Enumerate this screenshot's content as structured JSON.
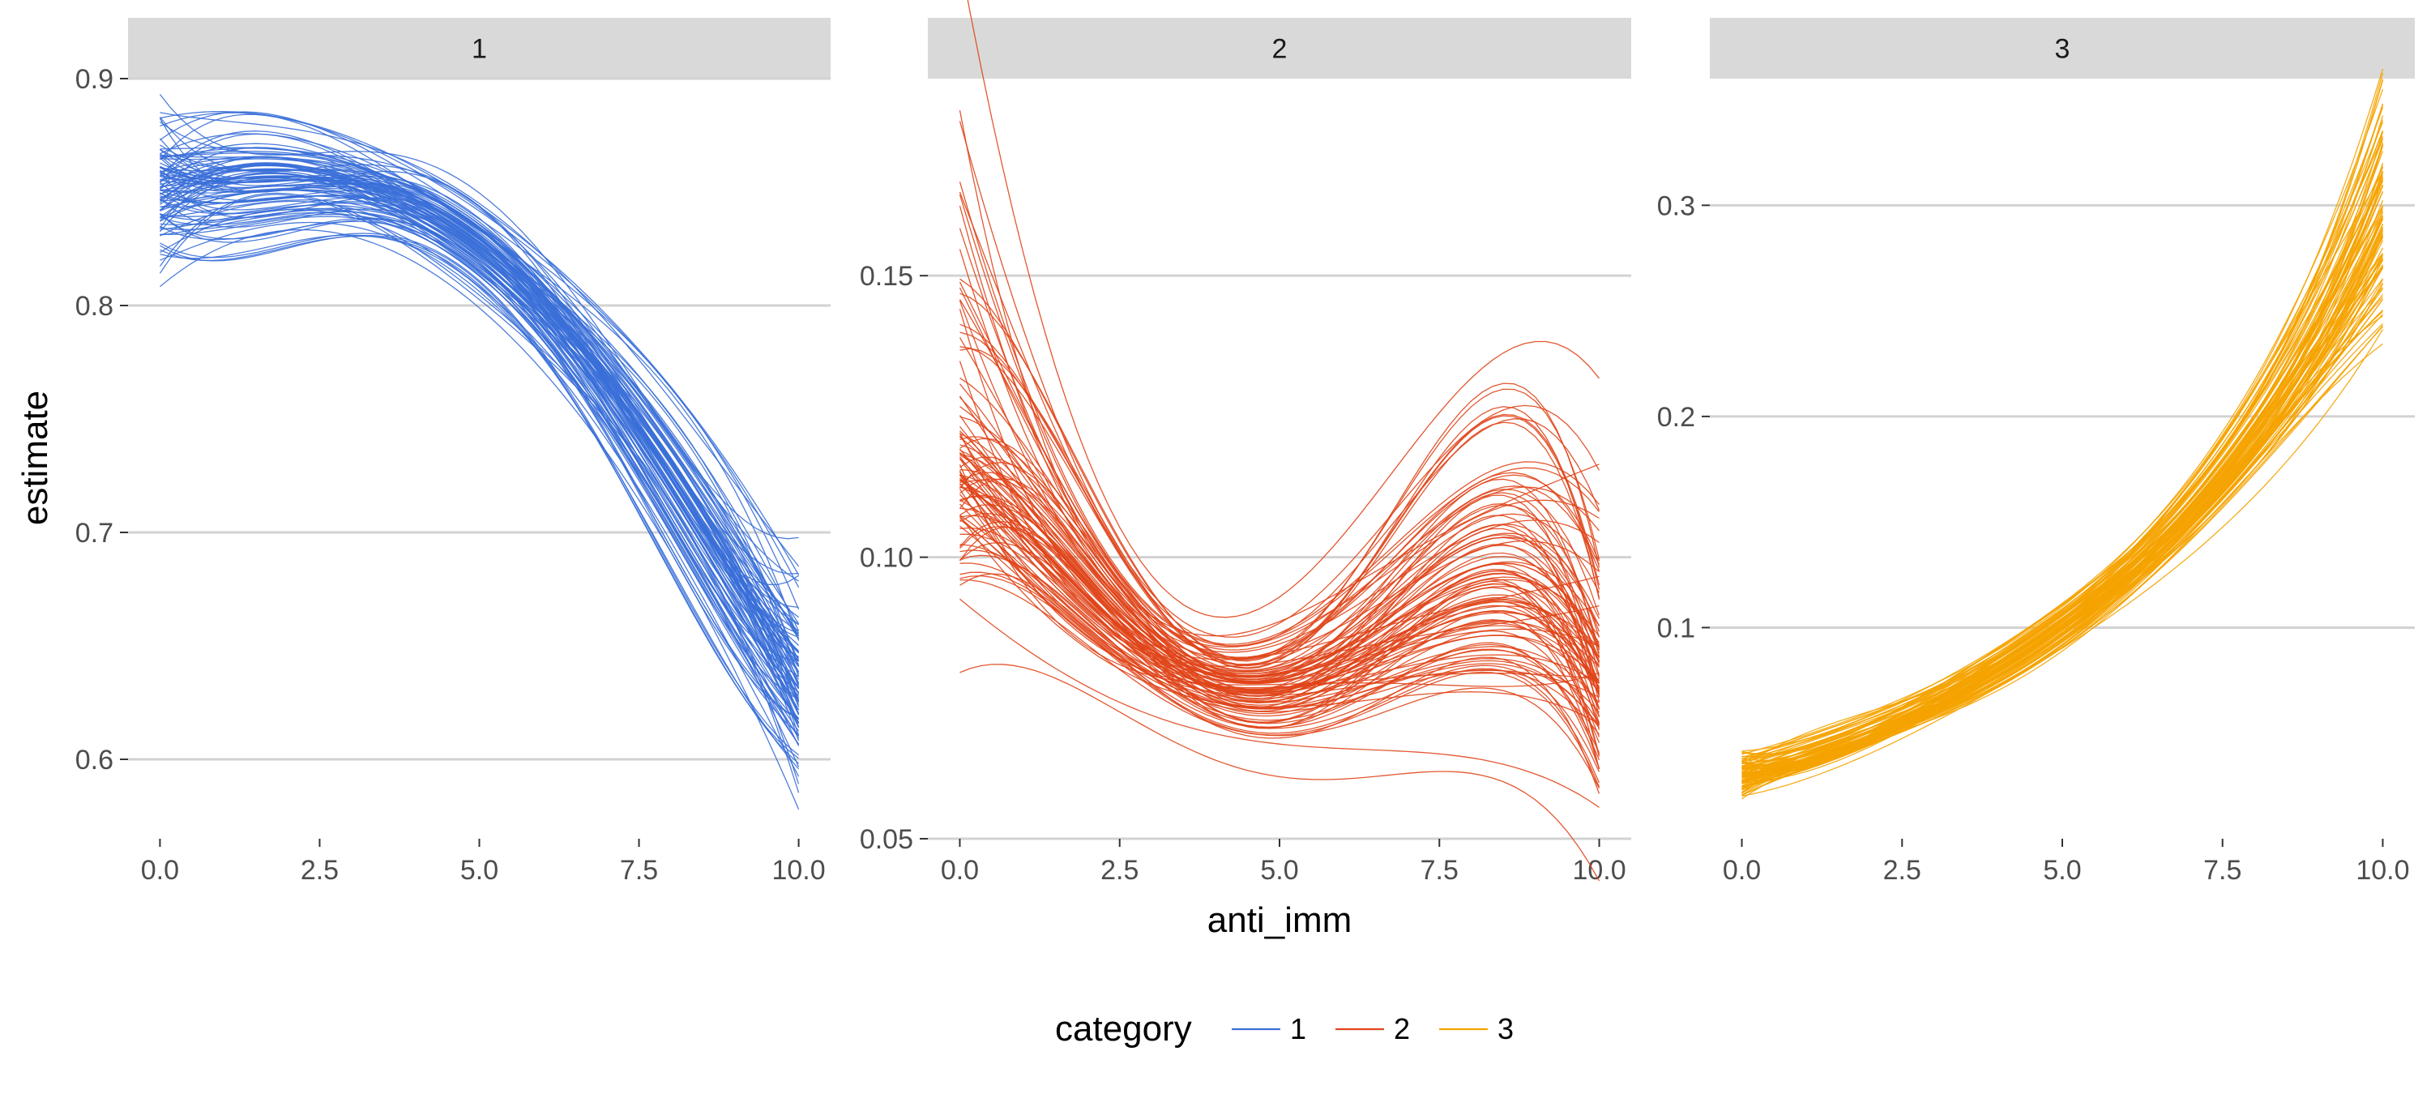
{
  "chart_data": {
    "type": "line",
    "facet_by": "category",
    "xlabel": "anti_imm",
    "ylabel": "estimate",
    "x_ticks": [
      0.0,
      2.5,
      5.0,
      7.5,
      10.0
    ],
    "x_tick_labels": [
      "0.0",
      "2.5",
      "5.0",
      "7.5",
      "10.0"
    ],
    "xlim": [
      -0.5,
      10.5
    ],
    "grid": "horizontal major only",
    "legend": {
      "title": "category",
      "position": "bottom",
      "entries": [
        {
          "label": "1",
          "color": "#3A6FD8"
        },
        {
          "label": "2",
          "color": "#E0451A"
        },
        {
          "label": "3",
          "color": "#F5A300"
        }
      ]
    },
    "panels": [
      {
        "strip": "1",
        "color": "#3A6FD8",
        "ylim": [
          0.565,
          0.9
        ],
        "y_ticks": [
          0.6,
          0.7,
          0.8,
          0.9
        ],
        "y_tick_labels": [
          "0.6",
          "0.7",
          "0.8",
          "0.9"
        ],
        "n_draws": 100,
        "x": [
          0,
          2.5,
          5,
          7.5,
          10
        ],
        "mean": [
          0.85,
          0.855,
          0.825,
          0.745,
          0.63
        ],
        "band_low": [
          0.81,
          0.83,
          0.8,
          0.71,
          0.58
        ],
        "band_high": [
          0.885,
          0.875,
          0.845,
          0.775,
          0.685
        ]
      },
      {
        "strip": "2",
        "color": "#E0451A",
        "ylim": [
          0.05,
          0.185
        ],
        "y_ticks": [
          0.05,
          0.1,
          0.15
        ],
        "y_tick_labels": [
          "0.05",
          "0.10",
          "0.15"
        ],
        "n_draws": 100,
        "x": [
          0,
          2.5,
          5,
          7.5,
          10
        ],
        "mean": [
          0.12,
          0.09,
          0.079,
          0.094,
          0.083
        ],
        "band_low": [
          0.093,
          0.078,
          0.067,
          0.072,
          0.056
        ],
        "band_high": [
          0.182,
          0.105,
          0.089,
          0.125,
          0.118
        ]
      },
      {
        "strip": "3",
        "color": "#F5A300",
        "ylim": [
          0.0,
          0.36
        ],
        "y_ticks": [
          0.1,
          0.2,
          0.3
        ],
        "y_tick_labels": [
          "0.1",
          "0.2",
          "0.3"
        ],
        "n_draws": 100,
        "x": [
          0,
          2.5,
          5,
          7.5,
          10
        ],
        "mean": [
          0.03,
          0.055,
          0.1,
          0.17,
          0.29
        ],
        "band_low": [
          0.02,
          0.05,
          0.09,
          0.155,
          0.24
        ],
        "band_high": [
          0.04,
          0.065,
          0.11,
          0.19,
          0.355
        ]
      }
    ]
  }
}
